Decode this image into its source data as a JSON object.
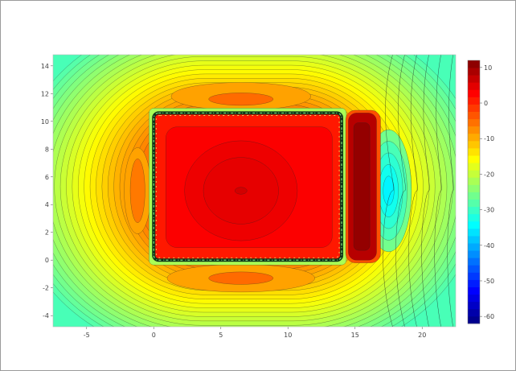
{
  "chart_data": {
    "type": "heatmap",
    "subtype": "filled-contour",
    "colormap": "jet",
    "x_range": [
      -7.5,
      22.5
    ],
    "y_range": [
      -4.8,
      14.8
    ],
    "x_ticks": [
      -5,
      0,
      5,
      10,
      15,
      20
    ],
    "x_tick_labels": [
      "-5",
      "0",
      "5",
      "10",
      "15",
      "20"
    ],
    "y_ticks": [
      -4,
      -2,
      0,
      2,
      4,
      6,
      8,
      10,
      12,
      14
    ],
    "y_tick_labels": [
      "-4",
      "-2",
      "0",
      "2",
      "4",
      "6",
      "8",
      "10",
      "12",
      "14"
    ],
    "colorbar": {
      "range": [
        -62,
        12
      ],
      "ticks": [
        10,
        0,
        -10,
        -20,
        -30,
        -40,
        -50,
        -60
      ],
      "tick_labels": [
        "10",
        "0",
        "-10",
        "-20",
        "-30",
        "-40",
        "-50",
        "-60"
      ]
    },
    "regions": [
      {
        "name": "main-rectangle",
        "x": [
          0,
          14
        ],
        "y": [
          0,
          10.6
        ],
        "level": 1
      },
      {
        "name": "right-strip",
        "x": [
          14.5,
          16.6
        ],
        "y": [
          0,
          10.6
        ],
        "level": 8
      },
      {
        "name": "blue-lobe",
        "center": [
          17.5,
          5
        ],
        "level": -34
      }
    ],
    "grid": false,
    "legend": "colorbar-right"
  }
}
